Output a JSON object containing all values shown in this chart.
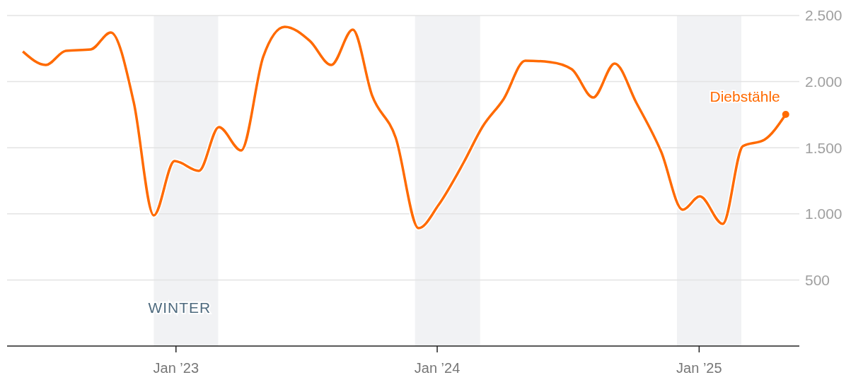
{
  "chart_data": {
    "type": "line",
    "x": [
      "2022-06-01",
      "2022-07-03",
      "2022-07-31",
      "2022-09-04",
      "2022-10-02",
      "2022-11-03",
      "2022-12-01",
      "2022-12-30",
      "2023-02-02",
      "2023-03-02",
      "2023-04-02",
      "2023-05-03",
      "2023-06-02",
      "2023-07-07",
      "2023-08-06",
      "2023-09-05",
      "2023-10-02",
      "2023-11-04",
      "2023-12-06",
      "2024-01-03",
      "2024-02-07",
      "2024-03-04",
      "2024-04-03",
      "2024-05-03",
      "2024-06-07",
      "2024-07-07",
      "2024-08-06",
      "2024-09-05",
      "2024-10-05",
      "2024-11-09",
      "2024-12-09",
      "2025-01-02",
      "2025-02-03",
      "2025-03-03",
      "2025-04-02",
      "2025-05-02"
    ],
    "series": [
      {
        "name": "Diebstähle",
        "color": "#ff6a00",
        "values": [
          2228,
          2126,
          2233,
          2244,
          2372,
          1843,
          988,
          1400,
          1325,
          1656,
          1480,
          2190,
          2415,
          2308,
          2126,
          2393,
          1896,
          1576,
          892,
          1068,
          1389,
          1656,
          1870,
          2158,
          2148,
          2094,
          1880,
          2137,
          1843,
          1469,
          1031,
          1132,
          924,
          1512,
          1560,
          1752
        ]
      }
    ],
    "xlim": [
      "2022-05-10",
      "2025-05-21"
    ],
    "xticks": [
      {
        "value": "2023-01-01",
        "label": "Jan ’23"
      },
      {
        "value": "2024-01-01",
        "label": "Jan ’24"
      },
      {
        "value": "2025-01-01",
        "label": "Jan ’25"
      }
    ],
    "ylim": [
      0,
      2500
    ],
    "yticks": [
      500,
      {
        "value": 1000,
        "label": "1.000"
      },
      {
        "value": 1500,
        "label": "1.500"
      },
      {
        "value": 2000,
        "label": "2.000"
      },
      {
        "value": 2500,
        "label": "2.500"
      }
    ],
    "grid": "y",
    "bands": [
      {
        "axis": "x",
        "from": "2022-12-01",
        "to": "2023-03-01",
        "label": "WINTER",
        "color": "#f1f2f4"
      },
      {
        "axis": "x",
        "from": "2023-12-01",
        "to": "2024-03-01",
        "color": "#f1f2f4"
      },
      {
        "axis": "x",
        "from": "2024-12-01",
        "to": "2025-03-01",
        "color": "#f1f2f4"
      }
    ]
  }
}
